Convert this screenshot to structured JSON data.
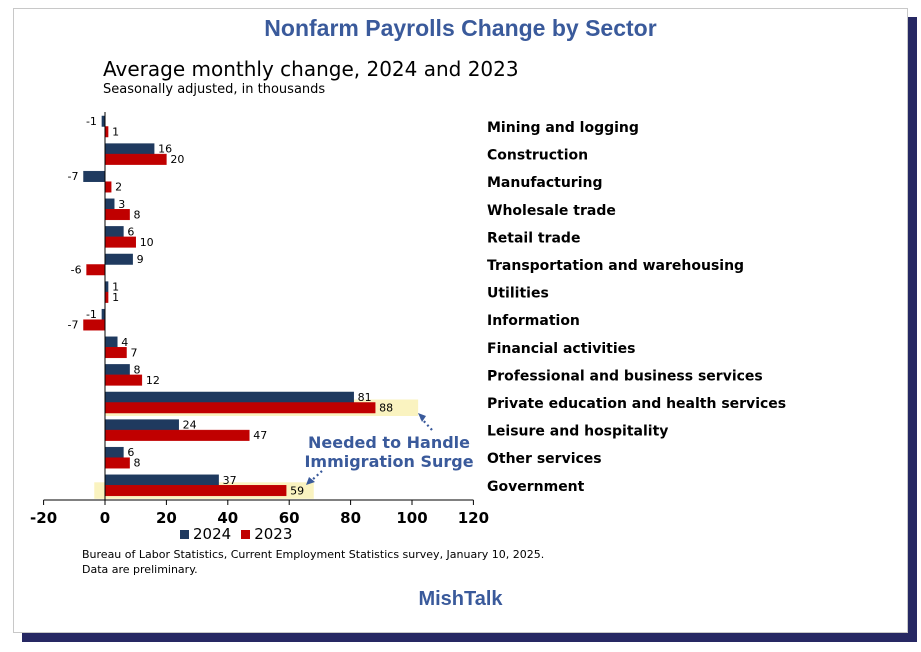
{
  "page": {
    "title": "Nonfarm Payrolls Change by Sector",
    "subtitle": "Average monthly change, 2024 and 2023",
    "units_note": "Seasonally adjusted, in thousands",
    "source_line1": "Bureau of Labor Statistics, Current Employment Statistics survey, January 10, 2025.",
    "source_line2": "Data are preliminary.",
    "brand": "MishTalk",
    "annotation_line1": "Needed to Handle",
    "annotation_line2": "Immigration Surge"
  },
  "colors": {
    "title": "#3a5a9b",
    "series_2024": "#1f3a5f",
    "series_2023": "#c00000",
    "highlight": "#faf3c0",
    "annotation": "#3a5a9b",
    "shadow": "#262863"
  },
  "chart_data": {
    "type": "bar",
    "orientation": "horizontal",
    "categories": [
      "Mining and logging",
      "Construction",
      "Manufacturing",
      "Wholesale trade",
      "Retail trade",
      "Transportation and warehousing",
      "Utilities",
      "Information",
      "Financial activities",
      "Professional and business services",
      "Private education and health services",
      "Leisure and hospitality",
      "Other services",
      "Government"
    ],
    "series": [
      {
        "name": "2024",
        "values": [
          -1,
          16,
          -7,
          3,
          6,
          9,
          1,
          -1,
          4,
          8,
          81,
          24,
          6,
          37
        ]
      },
      {
        "name": "2023",
        "values": [
          1,
          20,
          2,
          8,
          10,
          -6,
          1,
          -7,
          7,
          12,
          88,
          47,
          8,
          59
        ]
      }
    ],
    "xlim": [
      -20,
      120
    ],
    "xticks": [
      -20,
      0,
      20,
      40,
      60,
      80,
      100,
      120
    ],
    "legend": [
      "2024",
      "2023"
    ],
    "legend_position": "bottom",
    "highlighted_categories": [
      "Private education and health services",
      "Government"
    ],
    "highlighted_series": "2023"
  }
}
